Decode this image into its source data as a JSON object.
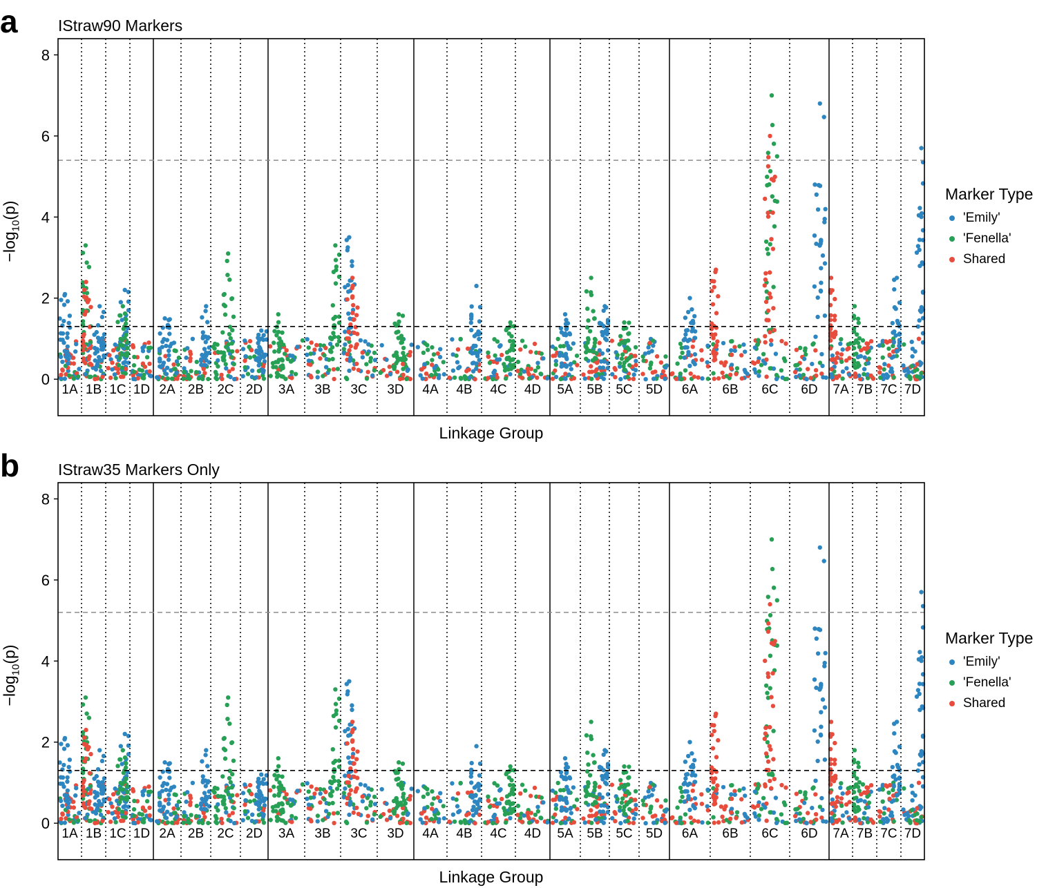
{
  "colors": {
    "emily": "#2E86C1",
    "fenella": "#27A055",
    "shared": "#E74C3C",
    "axis": "#000000",
    "threshold": "#000000",
    "bonferroni": "#8C8C8C"
  },
  "chart_data": [
    {
      "panel_label": "a",
      "title": "IStraw90 Markers",
      "type": "scatter",
      "xlabel": "Linkage Group",
      "ylabel_prefix": "−log",
      "ylabel_sub": "10",
      "ylabel_suffix": "(p)",
      "ylim": [
        -0.9,
        8.4
      ],
      "yticks": [
        0,
        2,
        4,
        6,
        8
      ],
      "groups": [
        "1A",
        "1B",
        "1C",
        "1D",
        "2A",
        "2B",
        "2C",
        "2D",
        "3A",
        "3B",
        "3C",
        "3D",
        "4A",
        "4B",
        "4C",
        "4D",
        "5A",
        "5B",
        "5C",
        "5D",
        "6A",
        "6B",
        "6C",
        "6D",
        "7A",
        "7B",
        "7C",
        "7D"
      ],
      "thresholds": [
        {
          "y": 1.3,
          "style": "dashed-black"
        },
        {
          "y": 5.4,
          "style": "dashed-grey"
        }
      ],
      "legend": {
        "title": "Marker Type",
        "items": [
          "'Emily'",
          "'Fenella'",
          "Shared"
        ],
        "position": "right"
      },
      "peaks": [
        {
          "group": "1A",
          "series": "'Emily'",
          "pos": 0.25,
          "y": 2.1
        },
        {
          "group": "1B",
          "series": "'Fenella'",
          "pos": 0.1,
          "y": 3.3
        },
        {
          "group": "1B",
          "series": "Shared",
          "pos": 0.12,
          "y": 2.4
        },
        {
          "group": "1B",
          "series": "'Emily'",
          "pos": 0.8,
          "y": 1.8
        },
        {
          "group": "1C",
          "series": "'Emily'",
          "pos": 0.85,
          "y": 2.2
        },
        {
          "group": "1C",
          "series": "'Fenella'",
          "pos": 0.75,
          "y": 1.8
        },
        {
          "group": "2A",
          "series": "'Emily'",
          "pos": 0.4,
          "y": 1.5
        },
        {
          "group": "2B",
          "series": "'Emily'",
          "pos": 0.9,
          "y": 1.8
        },
        {
          "group": "2C",
          "series": "'Fenella'",
          "pos": 0.6,
          "y": 3.1
        },
        {
          "group": "2D",
          "series": "'Emily'",
          "pos": 0.8,
          "y": 1.2
        },
        {
          "group": "3A",
          "series": "'Fenella'",
          "pos": 0.25,
          "y": 1.6
        },
        {
          "group": "3B",
          "series": "'Fenella'",
          "pos": 0.9,
          "y": 3.3
        },
        {
          "group": "3C",
          "series": "'Emily'",
          "pos": 0.2,
          "y": 3.5
        },
        {
          "group": "3C",
          "series": "Shared",
          "pos": 0.3,
          "y": 2.5
        },
        {
          "group": "3D",
          "series": "'Fenella'",
          "pos": 0.6,
          "y": 1.6
        },
        {
          "group": "4B",
          "series": "'Emily'",
          "pos": 0.9,
          "y": 2.3
        },
        {
          "group": "4C",
          "series": "'Fenella'",
          "pos": 0.9,
          "y": 1.4
        },
        {
          "group": "5A",
          "series": "'Emily'",
          "pos": 0.5,
          "y": 1.6
        },
        {
          "group": "5B",
          "series": "'Fenella'",
          "pos": 0.35,
          "y": 2.5
        },
        {
          "group": "5B",
          "series": "'Emily'",
          "pos": 0.9,
          "y": 1.8
        },
        {
          "group": "5C",
          "series": "'Fenella'",
          "pos": 0.5,
          "y": 1.4
        },
        {
          "group": "6A",
          "series": "'Emily'",
          "pos": 0.5,
          "y": 2.0
        },
        {
          "group": "6B",
          "series": "Shared",
          "pos": 0.1,
          "y": 2.7
        },
        {
          "group": "6C",
          "series": "'Fenella'",
          "pos": 0.55,
          "y": 7.0
        },
        {
          "group": "6C",
          "series": "Shared",
          "pos": 0.5,
          "y": 6.0
        },
        {
          "group": "6D",
          "series": "'Emily'",
          "pos": 0.8,
          "y": 6.8
        },
        {
          "group": "7A",
          "series": "Shared",
          "pos": 0.0,
          "y": 2.5
        },
        {
          "group": "7B",
          "series": "'Fenella'",
          "pos": 0.0,
          "y": 1.8
        },
        {
          "group": "7C",
          "series": "'Emily'",
          "pos": 0.9,
          "y": 2.5
        },
        {
          "group": "7D",
          "series": "'Emily'",
          "pos": 0.95,
          "y": 5.7
        }
      ]
    },
    {
      "panel_label": "b",
      "title": "IStraw35 Markers Only",
      "type": "scatter",
      "xlabel": "Linkage Group",
      "ylabel_prefix": "−log",
      "ylabel_sub": "10",
      "ylabel_suffix": "(p)",
      "ylim": [
        -0.9,
        8.4
      ],
      "yticks": [
        0,
        2,
        4,
        6,
        8
      ],
      "groups": [
        "1A",
        "1B",
        "1C",
        "1D",
        "2A",
        "2B",
        "2C",
        "2D",
        "3A",
        "3B",
        "3C",
        "3D",
        "4A",
        "4B",
        "4C",
        "4D",
        "5A",
        "5B",
        "5C",
        "5D",
        "6A",
        "6B",
        "6C",
        "6D",
        "7A",
        "7B",
        "7C",
        "7D"
      ],
      "thresholds": [
        {
          "y": 1.3,
          "style": "dashed-black"
        },
        {
          "y": 5.2,
          "style": "dashed-grey"
        }
      ],
      "legend": {
        "title": "Marker Type",
        "items": [
          "'Emily'",
          "'Fenella'",
          "Shared"
        ],
        "position": "right"
      },
      "peaks": [
        {
          "group": "1A",
          "series": "'Emily'",
          "pos": 0.25,
          "y": 2.1
        },
        {
          "group": "1B",
          "series": "'Fenella'",
          "pos": 0.1,
          "y": 3.1
        },
        {
          "group": "1B",
          "series": "Shared",
          "pos": 0.12,
          "y": 2.3
        },
        {
          "group": "1B",
          "series": "'Emily'",
          "pos": 0.8,
          "y": 1.8
        },
        {
          "group": "1C",
          "series": "'Emily'",
          "pos": 0.85,
          "y": 2.2
        },
        {
          "group": "1C",
          "series": "'Fenella'",
          "pos": 0.75,
          "y": 1.8
        },
        {
          "group": "2A",
          "series": "'Emily'",
          "pos": 0.4,
          "y": 1.5
        },
        {
          "group": "2B",
          "series": "'Emily'",
          "pos": 0.9,
          "y": 1.8
        },
        {
          "group": "2C",
          "series": "'Fenella'",
          "pos": 0.6,
          "y": 3.1
        },
        {
          "group": "2D",
          "series": "'Emily'",
          "pos": 0.8,
          "y": 1.2
        },
        {
          "group": "3A",
          "series": "'Fenella'",
          "pos": 0.25,
          "y": 1.6
        },
        {
          "group": "3B",
          "series": "'Fenella'",
          "pos": 0.9,
          "y": 3.3
        },
        {
          "group": "3C",
          "series": "'Emily'",
          "pos": 0.2,
          "y": 3.5
        },
        {
          "group": "3C",
          "series": "Shared",
          "pos": 0.3,
          "y": 2.5
        },
        {
          "group": "3D",
          "series": "'Fenella'",
          "pos": 0.6,
          "y": 1.5
        },
        {
          "group": "4B",
          "series": "'Emily'",
          "pos": 0.9,
          "y": 1.9
        },
        {
          "group": "4C",
          "series": "'Fenella'",
          "pos": 0.9,
          "y": 1.4
        },
        {
          "group": "5A",
          "series": "'Emily'",
          "pos": 0.5,
          "y": 1.6
        },
        {
          "group": "5B",
          "series": "'Fenella'",
          "pos": 0.35,
          "y": 2.5
        },
        {
          "group": "5B",
          "series": "'Emily'",
          "pos": 0.9,
          "y": 1.8
        },
        {
          "group": "5C",
          "series": "'Fenella'",
          "pos": 0.5,
          "y": 1.4
        },
        {
          "group": "6A",
          "series": "'Emily'",
          "pos": 0.5,
          "y": 2.0
        },
        {
          "group": "6B",
          "series": "Shared",
          "pos": 0.1,
          "y": 2.7
        },
        {
          "group": "6C",
          "series": "'Fenella'",
          "pos": 0.55,
          "y": 7.0
        },
        {
          "group": "6C",
          "series": "Shared",
          "pos": 0.5,
          "y": 5.4
        },
        {
          "group": "6D",
          "series": "'Emily'",
          "pos": 0.8,
          "y": 6.8
        },
        {
          "group": "7A",
          "series": "Shared",
          "pos": 0.0,
          "y": 2.5
        },
        {
          "group": "7B",
          "series": "'Fenella'",
          "pos": 0.0,
          "y": 1.8
        },
        {
          "group": "7C",
          "series": "'Emily'",
          "pos": 0.9,
          "y": 2.5
        },
        {
          "group": "7D",
          "series": "'Emily'",
          "pos": 0.95,
          "y": 5.7
        }
      ]
    }
  ]
}
